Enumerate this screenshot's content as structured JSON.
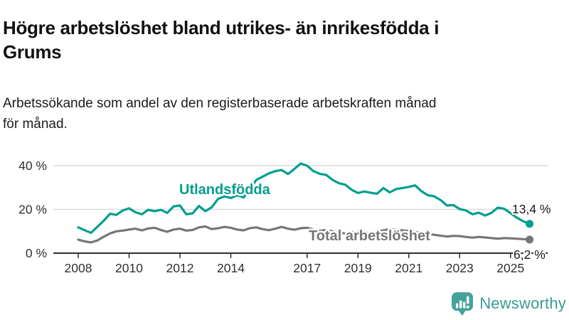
{
  "header": {
    "title": "Högre arbetslöshet bland utrikes- än inrikesfödda i\nGrums",
    "subtitle": "Arbetssökande som andel av den registerbaserade arbetskraften månad\nför månad."
  },
  "chart_data": {
    "type": "line",
    "unit": "%",
    "x_start": 2008,
    "x_step": 0.25,
    "ylim": [
      0,
      44
    ],
    "grid": "horizontal",
    "legend": "inline-labels",
    "x_ticks": [
      {
        "year": 2008,
        "label": "2008"
      },
      {
        "year": 2010,
        "label": "2010"
      },
      {
        "year": 2012,
        "label": "2012"
      },
      {
        "year": 2014,
        "label": "2014"
      },
      {
        "year": 2017,
        "label": "2017"
      },
      {
        "year": 2019,
        "label": "2019"
      },
      {
        "year": 2021,
        "label": "2021"
      },
      {
        "year": 2023,
        "label": "2023"
      },
      {
        "year": 2025,
        "label": "2025"
      }
    ],
    "y_ticks": [
      {
        "value": 0,
        "label": "0 %"
      },
      {
        "value": 20,
        "label": "20 %"
      },
      {
        "value": 40,
        "label": "40 %"
      }
    ],
    "series": [
      {
        "name": "Utlandsfödda",
        "color": "#009e8e",
        "end_label": "13,4 %",
        "end_value": 13.4,
        "values": [
          11.8,
          10.5,
          9.3,
          12.0,
          14.8,
          18.0,
          17.5,
          19.5,
          20.5,
          18.7,
          17.8,
          19.8,
          19.2,
          19.8,
          18.4,
          21.4,
          21.8,
          17.8,
          18.2,
          21.6,
          19.2,
          21.0,
          24.8,
          26.0,
          25.2,
          26.5,
          25.5,
          29.0,
          33.5,
          35.0,
          36.5,
          37.5,
          38.0,
          36.2,
          38.5,
          41.0,
          40.0,
          37.5,
          36.3,
          35.8,
          33.5,
          32.0,
          31.3,
          29.0,
          27.5,
          28.2,
          27.6,
          27.2,
          29.8,
          27.8,
          29.3,
          29.8,
          30.3,
          31.0,
          28.3,
          26.5,
          26.0,
          24.3,
          21.8,
          22.0,
          20.2,
          19.5,
          17.8,
          18.5,
          17.2,
          18.4,
          20.8,
          20.3,
          18.3,
          16.2,
          14.6,
          13.4
        ]
      },
      {
        "name": "Total arbetslöshet",
        "color": "#76767a",
        "end_label": "6,2 %",
        "end_value": 6.2,
        "values": [
          6.2,
          5.4,
          4.9,
          5.8,
          7.5,
          9.0,
          10.0,
          10.3,
          10.8,
          11.2,
          10.4,
          11.3,
          11.6,
          10.6,
          9.8,
          10.8,
          11.2,
          10.3,
          10.6,
          11.8,
          12.2,
          11.0,
          11.4,
          12.0,
          11.6,
          10.8,
          10.4,
          11.4,
          11.8,
          11.0,
          10.5,
          11.2,
          12.0,
          11.2,
          10.7,
          11.4,
          11.6,
          10.8,
          10.2,
          10.6,
          10.0,
          9.3,
          9.0,
          9.6,
          9.8,
          9.4,
          9.2,
          9.8,
          10.4,
          11.0,
          10.7,
          10.4,
          10.1,
          9.7,
          9.2,
          8.8,
          8.4,
          8.0,
          7.6,
          7.9,
          7.8,
          7.4,
          7.1,
          7.4,
          7.2,
          6.9,
          6.6,
          6.9,
          6.8,
          6.6,
          6.4,
          6.2
        ]
      }
    ]
  },
  "colors": {
    "accent": "#009e8e",
    "series_gray": "#76767a",
    "grid": "#dcdcdc",
    "axis": "#2e2e2e",
    "text": "#111111"
  },
  "footer": {
    "brand": "Newsworthy",
    "logo_color": "#46a29b",
    "wordmark_color": "#3a9a93"
  }
}
